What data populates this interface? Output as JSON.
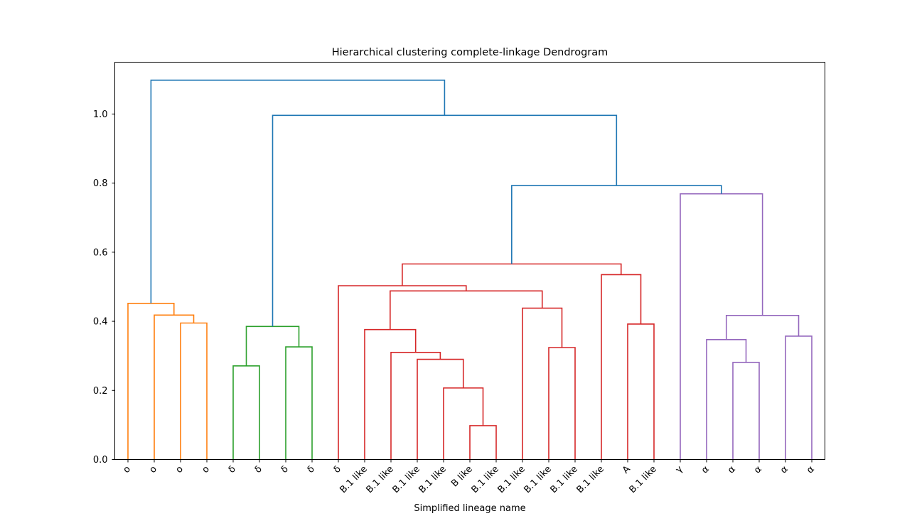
{
  "chart_data": {
    "type": "dendrogram",
    "title": "Hierarchical clustering complete-linkage Dendrogram",
    "xlabel": "Simplified lineage name",
    "ylabel": "",
    "ylim": [
      0,
      1.15
    ],
    "yticks": [
      0.0,
      0.2,
      0.4,
      0.6,
      0.8,
      1.0
    ],
    "ytick_labels": [
      "0.0",
      "0.2",
      "0.4",
      "0.6",
      "0.8",
      "1.0"
    ],
    "grid": false,
    "leaves": [
      "ο",
      "ο",
      "ο",
      "ο",
      "δ",
      "δ",
      "δ",
      "δ",
      "δ",
      "B.1 like",
      "B.1 like",
      "B.1 like",
      "B.1 like",
      "B like",
      "B.1 like",
      "B.1 like",
      "B.1 like",
      "B.1 like",
      "B.1 like",
      "A",
      "B.1 like",
      "γ",
      "α",
      "α",
      "α",
      "α",
      "α"
    ],
    "colors": {
      "C0": "#1f77b4",
      "C1": "#ff7f0e",
      "C2": "#2ca02c",
      "C3": "#d62728",
      "C4": "#9467bd"
    },
    "links": [
      {
        "id": "o_a",
        "left": "L2",
        "right": "L3",
        "height": 0.395,
        "color": "C1"
      },
      {
        "id": "o_b",
        "left": "L1",
        "right": "o_a",
        "height": 0.418,
        "color": "C1"
      },
      {
        "id": "o_c",
        "left": "L0",
        "right": "o_b",
        "height": 0.452,
        "color": "C1"
      },
      {
        "id": "d_a",
        "left": "L4",
        "right": "L5",
        "height": 0.271,
        "color": "C2"
      },
      {
        "id": "d_b",
        "left": "L6",
        "right": "L7",
        "height": 0.326,
        "color": "C2"
      },
      {
        "id": "d_c",
        "left": "d_a",
        "right": "d_b",
        "height": 0.385,
        "color": "C2"
      },
      {
        "id": "r_a",
        "left": "L13",
        "right": "L14",
        "height": 0.098,
        "color": "C3"
      },
      {
        "id": "r_b",
        "left": "L12",
        "right": "r_a",
        "height": 0.207,
        "color": "C3"
      },
      {
        "id": "r_c",
        "left": "L11",
        "right": "r_b",
        "height": 0.29,
        "color": "C3"
      },
      {
        "id": "r_d",
        "left": "L10",
        "right": "r_c",
        "height": 0.31,
        "color": "C3"
      },
      {
        "id": "r_e",
        "left": "L9",
        "right": "r_d",
        "height": 0.376,
        "color": "C3"
      },
      {
        "id": "r_f",
        "left": "L16",
        "right": "L17",
        "height": 0.324,
        "color": "C3"
      },
      {
        "id": "r_g",
        "left": "L15",
        "right": "r_f",
        "height": 0.438,
        "color": "C3"
      },
      {
        "id": "r_h",
        "left": "r_e",
        "right": "r_g",
        "height": 0.488,
        "color": "C3"
      },
      {
        "id": "r_i",
        "left": "L8",
        "right": "r_h",
        "height": 0.503,
        "color": "C3"
      },
      {
        "id": "r_j",
        "left": "L19",
        "right": "L20",
        "height": 0.392,
        "color": "C3"
      },
      {
        "id": "r_k",
        "left": "L18",
        "right": "r_j",
        "height": 0.535,
        "color": "C3"
      },
      {
        "id": "r_l",
        "left": "r_i",
        "right": "r_k",
        "height": 0.566,
        "color": "C3"
      },
      {
        "id": "p_a",
        "left": "L23",
        "right": "L24",
        "height": 0.281,
        "color": "C4"
      },
      {
        "id": "p_b",
        "left": "L22",
        "right": "p_a",
        "height": 0.347,
        "color": "C4"
      },
      {
        "id": "p_c",
        "left": "L25",
        "right": "L26",
        "height": 0.357,
        "color": "C4"
      },
      {
        "id": "p_d",
        "left": "p_b",
        "right": "p_c",
        "height": 0.417,
        "color": "C4"
      },
      {
        "id": "p_e",
        "left": "L21",
        "right": "p_d",
        "height": 0.769,
        "color": "C4"
      },
      {
        "id": "b_a",
        "left": "r_l",
        "right": "p_e",
        "height": 0.793,
        "color": "C0"
      },
      {
        "id": "b_b",
        "left": "d_c",
        "right": "b_a",
        "height": 0.996,
        "color": "C0"
      },
      {
        "id": "b_c",
        "left": "o_c",
        "right": "b_b",
        "height": 1.098,
        "color": "C0"
      }
    ]
  }
}
